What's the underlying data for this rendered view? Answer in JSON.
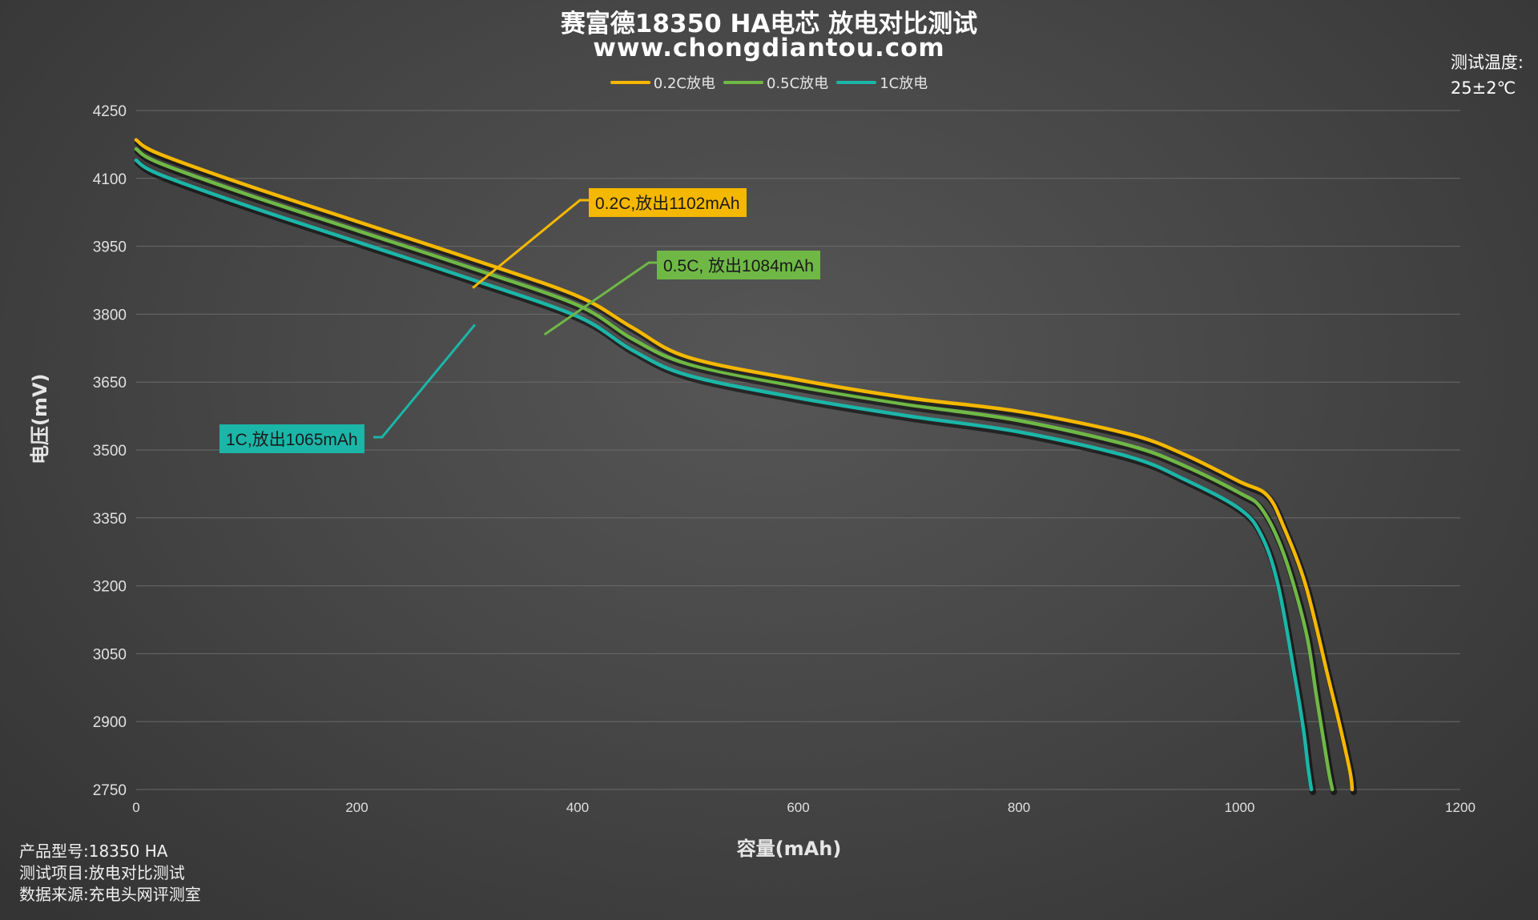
{
  "header": {
    "title": "赛富德18350 HA电芯 放电对比测试",
    "subtitle": "www.chongdiantou.com"
  },
  "temperature": {
    "label": "测试温度:",
    "value": "25±2℃"
  },
  "footer": {
    "model": "产品型号:18350 HA",
    "item": "测试项目:放电对比测试",
    "source": "数据来源:充电头网评测室"
  },
  "callouts": {
    "c02": "0.2C,放出1102mAh",
    "c05": "0.5C, 放出1084mAh",
    "c1": "1C,放出1065mAh"
  },
  "chart_data": {
    "type": "line",
    "xlabel": "容量(mAh)",
    "ylabel": "电压(mV)",
    "xlim": [
      0,
      1200
    ],
    "ylim": [
      2750,
      4250
    ],
    "xticks": [
      0,
      200,
      400,
      600,
      800,
      1000,
      1200
    ],
    "yticks": [
      2750,
      2900,
      3050,
      3200,
      3350,
      3500,
      3650,
      3800,
      3950,
      4100,
      4250
    ],
    "grid": "horizontal",
    "legend_position": "top",
    "series": [
      {
        "name": "0.2C放电",
        "color": "#f5b800",
        "x": [
          0,
          20,
          100,
          200,
          300,
          400,
          450,
          500,
          600,
          700,
          800,
          900,
          950,
          1000,
          1025,
          1040,
          1060,
          1080,
          1090,
          1100,
          1102
        ],
        "y": [
          4185,
          4155,
          4085,
          4005,
          3925,
          3840,
          3770,
          3705,
          3655,
          3615,
          3585,
          3535,
          3490,
          3430,
          3400,
          3330,
          3200,
          3000,
          2900,
          2790,
          2750
        ]
      },
      {
        "name": "0.5C放电",
        "color": "#6fb846",
        "x": [
          0,
          20,
          100,
          200,
          300,
          400,
          450,
          500,
          600,
          700,
          800,
          900,
          950,
          1000,
          1020,
          1040,
          1060,
          1070,
          1080,
          1084
        ],
        "y": [
          4165,
          4135,
          4065,
          3985,
          3905,
          3820,
          3745,
          3690,
          3640,
          3600,
          3565,
          3510,
          3465,
          3405,
          3370,
          3270,
          3100,
          2950,
          2800,
          2750
        ]
      },
      {
        "name": "1C放电",
        "color": "#1bb6a8",
        "x": [
          0,
          20,
          100,
          200,
          300,
          400,
          450,
          500,
          600,
          700,
          800,
          900,
          950,
          1000,
          1020,
          1035,
          1050,
          1058,
          1062,
          1065
        ],
        "y": [
          4140,
          4110,
          4040,
          3960,
          3880,
          3795,
          3720,
          3665,
          3615,
          3575,
          3540,
          3485,
          3435,
          3370,
          3310,
          3200,
          3000,
          2880,
          2800,
          2750
        ]
      }
    ]
  }
}
